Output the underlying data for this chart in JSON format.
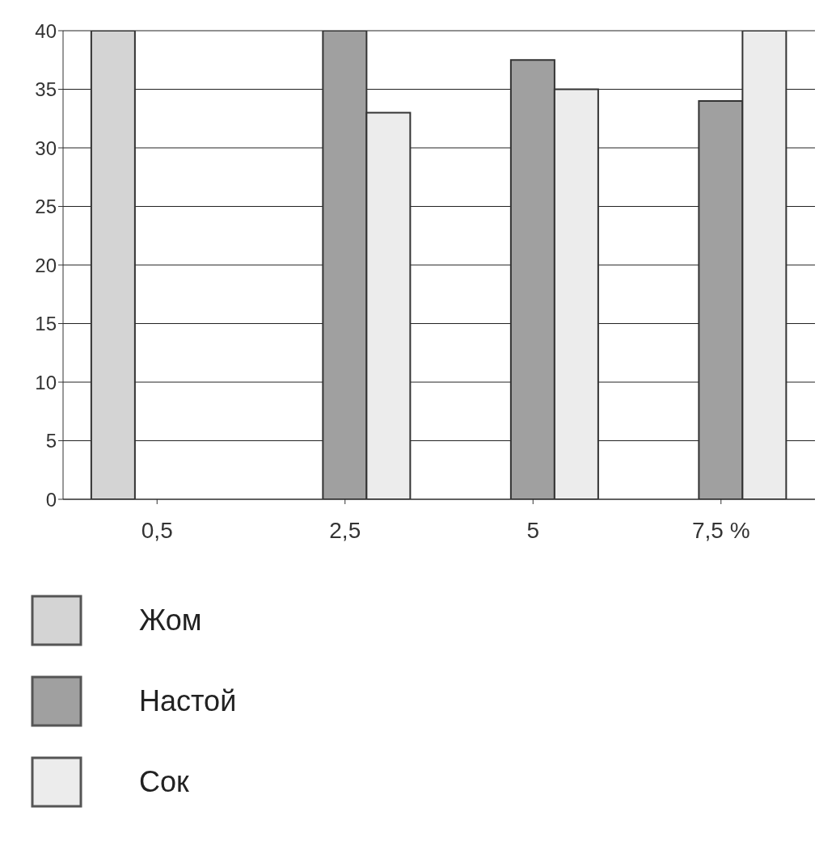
{
  "chart_data": {
    "type": "bar",
    "categories": [
      "0,5",
      "2,5",
      "5",
      "7,5 %"
    ],
    "series": [
      {
        "name": "Жом",
        "color": "#d4d4d4",
        "values": [
          40,
          null,
          null,
          null
        ]
      },
      {
        "name": "Настой",
        "color": "#a0a0a0",
        "values": [
          null,
          40,
          37.5,
          34
        ]
      },
      {
        "name": "Сок",
        "color": "#ececec",
        "values": [
          null,
          33,
          35,
          40
        ]
      }
    ],
    "ylim": [
      0,
      40
    ],
    "yticks": [
      0,
      5,
      10,
      15,
      20,
      25,
      30,
      35,
      40
    ],
    "grid": "y",
    "legend": "bottom"
  }
}
